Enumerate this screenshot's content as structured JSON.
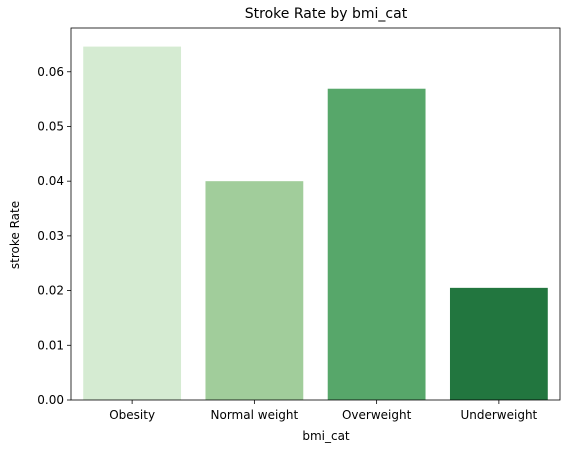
{
  "chart_data": {
    "type": "bar",
    "title": "Stroke Rate by bmi_cat",
    "xlabel": "bmi_cat",
    "ylabel": "stroke Rate",
    "categories": [
      "Obesity",
      "Normal weight",
      "Overweight",
      "Underweight"
    ],
    "values": [
      0.0646,
      0.04,
      0.0569,
      0.0205
    ],
    "colors": [
      "#d5ebd2",
      "#a1cd9b",
      "#57a76a",
      "#22763f"
    ],
    "ylim": [
      0,
      0.068
    ],
    "yticks": [
      "0.00",
      "0.01",
      "0.02",
      "0.03",
      "0.04",
      "0.05",
      "0.06"
    ],
    "grid": false,
    "legend": "none"
  }
}
